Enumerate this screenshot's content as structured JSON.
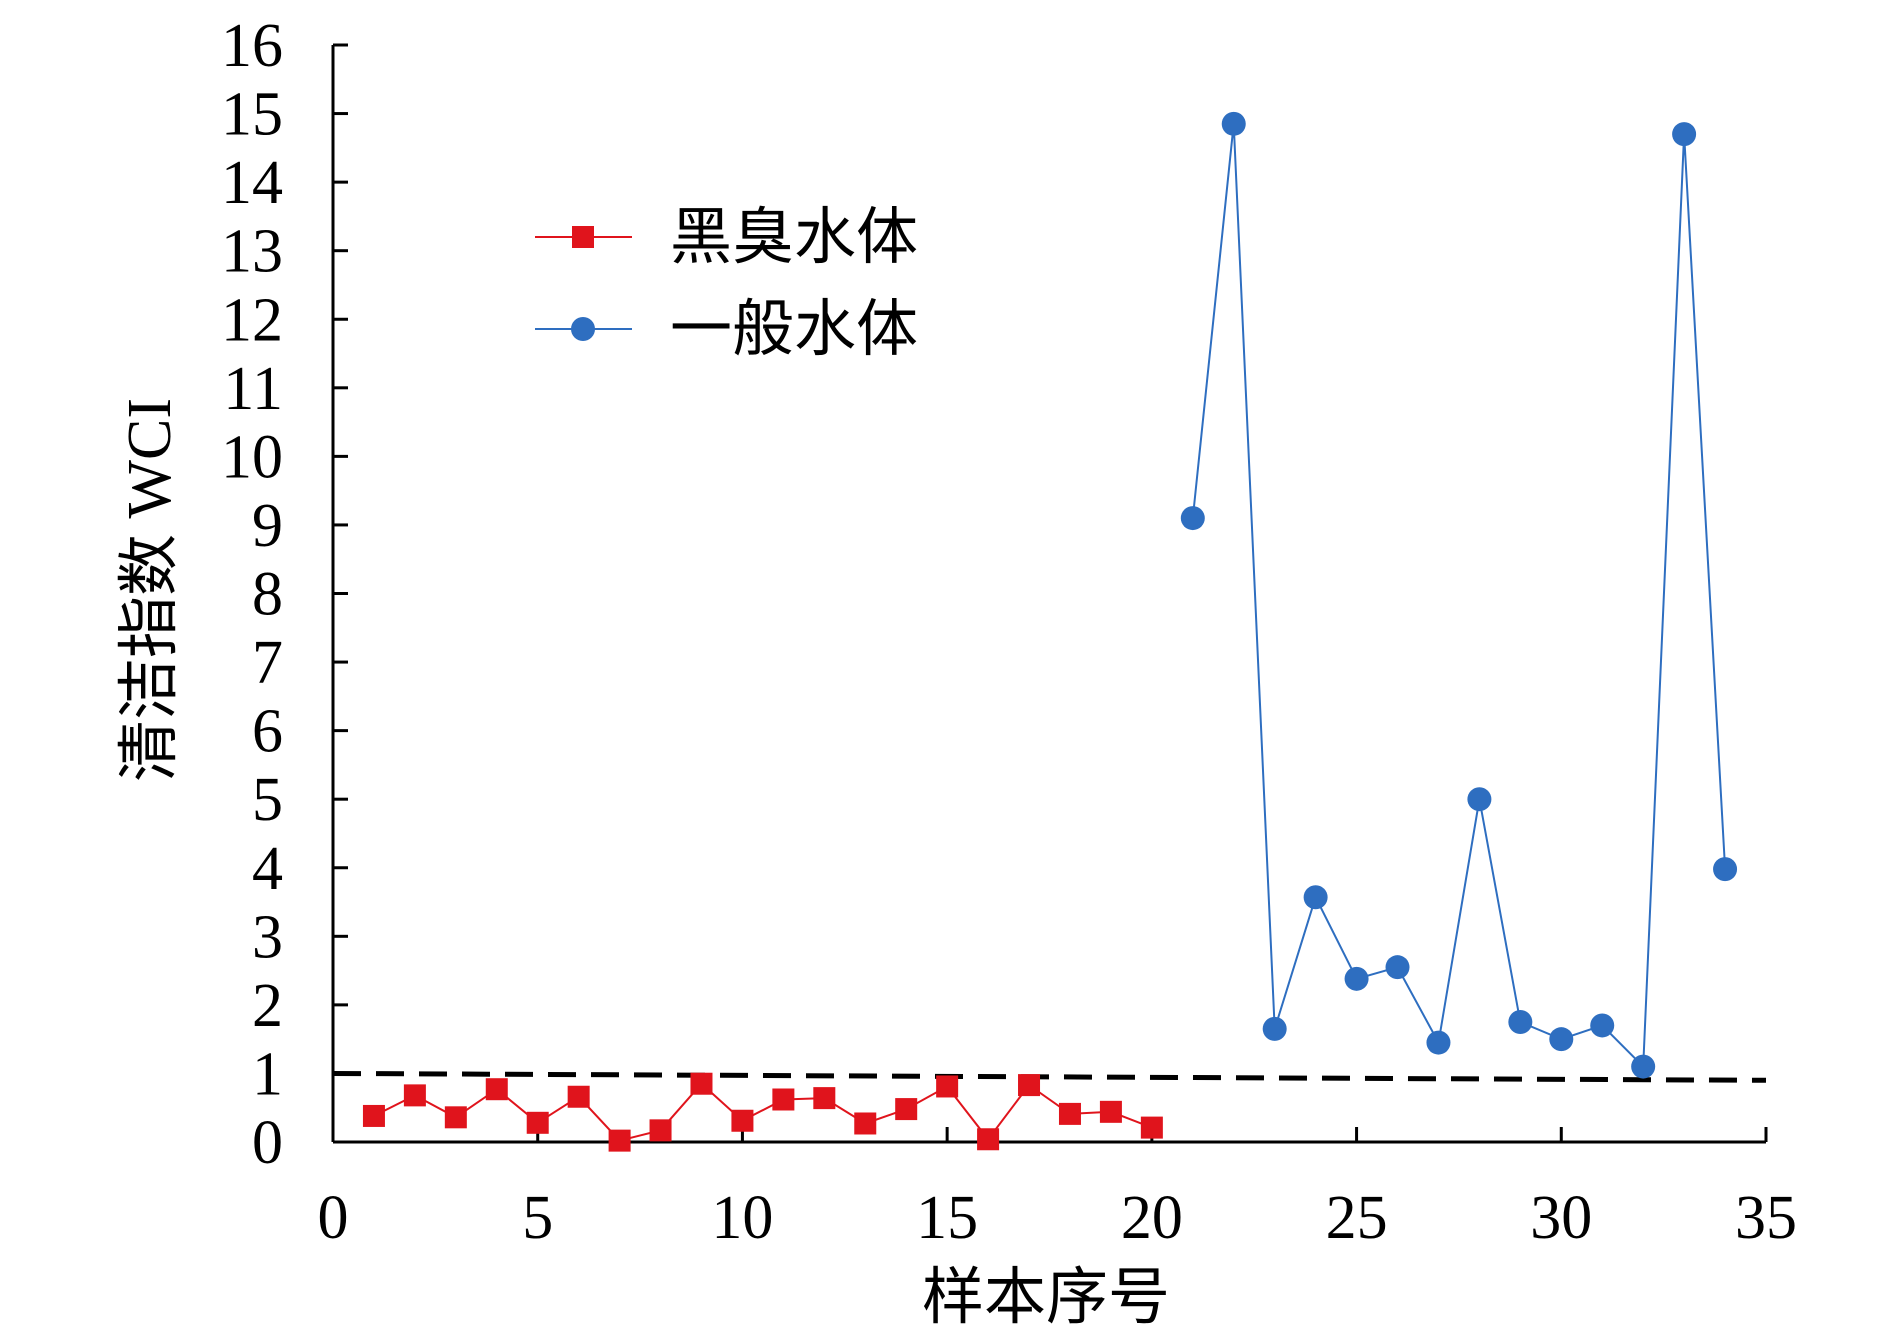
{
  "chart_data": {
    "type": "line",
    "xlabel": "样本序号",
    "ylabel": "清洁指数 WCI",
    "xlim": [
      0,
      35
    ],
    "ylim": [
      0,
      16
    ],
    "x_ticks": [
      0,
      5,
      10,
      15,
      20,
      25,
      30,
      35
    ],
    "y_ticks": [
      0,
      1,
      2,
      3,
      4,
      5,
      6,
      7,
      8,
      9,
      10,
      11,
      12,
      13,
      14,
      15,
      16
    ],
    "grid": false,
    "legend_position": "upper-left",
    "reference_line": {
      "style": "dashed",
      "color": "#000000",
      "y_start": 1.0,
      "y_end": 0.9
    },
    "series": [
      {
        "name": "黑臭水体",
        "color": "#e0141c",
        "marker": "square",
        "x": [
          1,
          2,
          3,
          4,
          5,
          6,
          7,
          8,
          9,
          10,
          11,
          12,
          13,
          14,
          15,
          16,
          17,
          18,
          19,
          20
        ],
        "y": [
          0.38,
          0.68,
          0.36,
          0.77,
          0.28,
          0.66,
          0.02,
          0.17,
          0.85,
          0.31,
          0.62,
          0.64,
          0.27,
          0.48,
          0.81,
          0.04,
          0.83,
          0.41,
          0.44,
          0.21
        ]
      },
      {
        "name": "一般水体",
        "color": "#2e6ec0",
        "marker": "circle",
        "x": [
          21,
          22,
          23,
          24,
          25,
          26,
          27,
          28,
          29,
          30,
          31,
          32,
          33,
          34
        ],
        "y": [
          9.1,
          14.85,
          1.65,
          3.57,
          2.38,
          2.55,
          1.45,
          5.0,
          1.75,
          1.5,
          1.7,
          1.1,
          14.7,
          3.98
        ]
      }
    ]
  }
}
